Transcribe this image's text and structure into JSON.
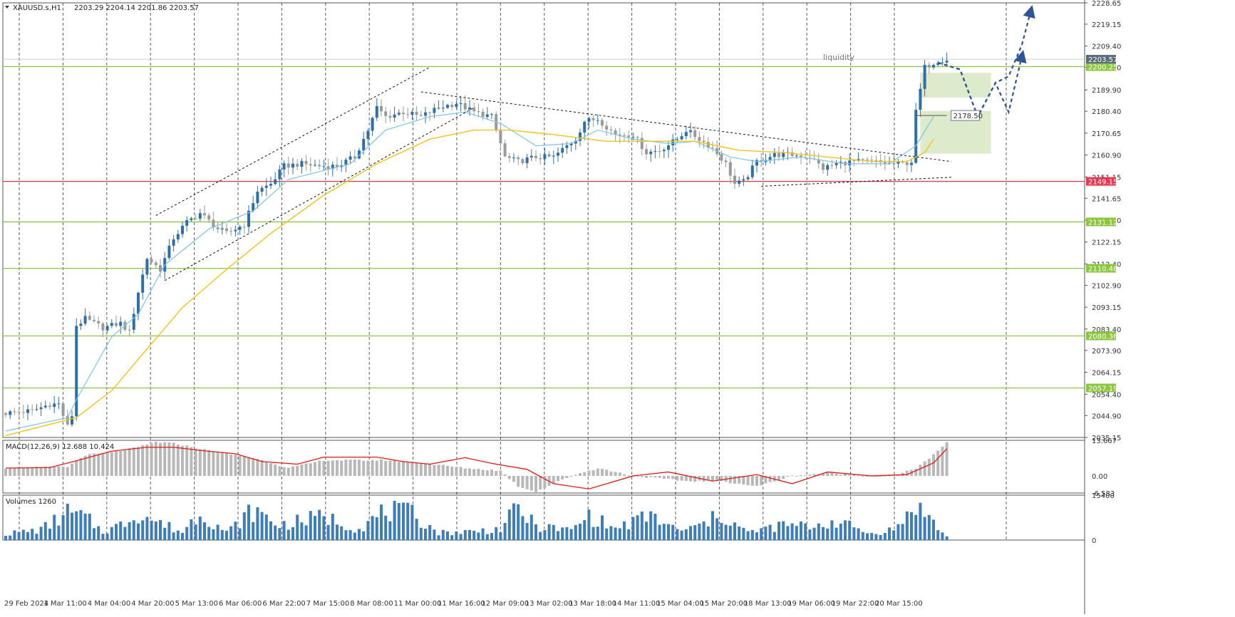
{
  "header": {
    "symbol_label": "XAUUSD.s,H1",
    "ohlc_label": "2203.29 2204.14 2201.86 2203.57"
  },
  "colors": {
    "bull": "#2f6fa8",
    "bear": "#9a9a9a",
    "ema_fast": "#7cc4e8",
    "ema_slow": "#f0c419",
    "level_green": "#8cc63f",
    "support_red": "#e8384f",
    "macd_hist": "#b8b8b8",
    "macd_signal": "#e01818",
    "volume": "#3d7db8",
    "forecast": "#2d5597",
    "zone_fill": "#d7e8c3",
    "grid": "#333333"
  },
  "chart_data": [
    {
      "type": "candlestick",
      "title": "XAUUSD.s,H1",
      "ohlc_readout": "2203.29 2204.14 2201.86 2203.57",
      "ylim": [
        2035.15,
        2228.65
      ],
      "y_ticks": [
        "2228.65",
        "2219.15",
        "2209.40",
        "2199.90",
        "2189.90",
        "2180.40",
        "2170.65",
        "2160.90",
        "2151.15",
        "2141.65",
        "2131.90",
        "2122.15",
        "2112.40",
        "2102.90",
        "2093.15",
        "2083.40",
        "2073.90",
        "2064.15",
        "2054.40",
        "2044.90",
        "2035.15"
      ],
      "x_ticks": [
        "29 Feb 2024",
        "1 Mar 11:00",
        "4 Mar 04:00",
        "4 Mar 20:00",
        "5 Mar 13:00",
        "6 Mar 06:00",
        "6 Mar 22:00",
        "7 Mar 15:00",
        "8 Mar 08:00",
        "11 Mar 00:00",
        "11 Mar 16:00",
        "12 Mar 09:00",
        "13 Mar 02:00",
        "13 Mar 18:00",
        "14 Mar 11:00",
        "15 Mar 04:00",
        "15 Mar 20:00",
        "18 Mar 13:00",
        "19 Mar 06:00",
        "19 Mar 22:00",
        "20 Mar 15:00"
      ],
      "price_path": [
        [
          0,
          2046
        ],
        [
          6,
          2047
        ],
        [
          10,
          2050
        ],
        [
          12,
          2050
        ],
        [
          14,
          2040
        ],
        [
          15,
          2045
        ],
        [
          16,
          2085
        ],
        [
          18,
          2088
        ],
        [
          22,
          2084
        ],
        [
          26,
          2086
        ],
        [
          28,
          2082
        ],
        [
          30,
          2100
        ],
        [
          32,
          2115
        ],
        [
          35,
          2110
        ],
        [
          38,
          2124
        ],
        [
          41,
          2131
        ],
        [
          44,
          2135
        ],
        [
          48,
          2128
        ],
        [
          50,
          2126
        ],
        [
          54,
          2130
        ],
        [
          57,
          2145
        ],
        [
          60,
          2148
        ],
        [
          63,
          2156
        ],
        [
          67,
          2157
        ],
        [
          71,
          2156
        ],
        [
          75,
          2156
        ],
        [
          79,
          2160
        ],
        [
          82,
          2172
        ],
        [
          84,
          2182
        ],
        [
          86,
          2178
        ],
        [
          90,
          2180
        ],
        [
          94,
          2178
        ],
        [
          98,
          2182
        ],
        [
          102,
          2184
        ],
        [
          106,
          2180
        ],
        [
          110,
          2178
        ],
        [
          113,
          2160
        ],
        [
          116,
          2158
        ],
        [
          120,
          2160
        ],
        [
          124,
          2160
        ],
        [
          127,
          2165
        ],
        [
          129,
          2168
        ],
        [
          131,
          2176
        ],
        [
          134,
          2177
        ],
        [
          138,
          2170
        ],
        [
          142,
          2170
        ],
        [
          145,
          2162
        ],
        [
          148,
          2163
        ],
        [
          152,
          2168
        ],
        [
          154,
          2172
        ],
        [
          157,
          2168
        ],
        [
          160,
          2164
        ],
        [
          163,
          2157
        ],
        [
          165,
          2148
        ],
        [
          167,
          2149
        ],
        [
          170,
          2158
        ],
        [
          174,
          2161
        ],
        [
          178,
          2161
        ],
        [
          182,
          2160
        ],
        [
          185,
          2155
        ],
        [
          188,
          2157
        ],
        [
          192,
          2158
        ],
        [
          196,
          2158
        ],
        [
          200,
          2157
        ],
        [
          203,
          2157
        ],
        [
          205,
          2158
        ],
        [
          206,
          2180
        ],
        [
          208,
          2200
        ],
        [
          211,
          2203
        ],
        [
          213,
          2203.57
        ]
      ],
      "ema_fast_path": [
        [
          0,
          2038
        ],
        [
          14,
          2044
        ],
        [
          16,
          2052
        ],
        [
          24,
          2080
        ],
        [
          30,
          2090
        ],
        [
          36,
          2112
        ],
        [
          46,
          2128
        ],
        [
          56,
          2136
        ],
        [
          64,
          2150
        ],
        [
          78,
          2157
        ],
        [
          86,
          2172
        ],
        [
          96,
          2178
        ],
        [
          104,
          2180
        ],
        [
          112,
          2175
        ],
        [
          120,
          2165
        ],
        [
          128,
          2166
        ],
        [
          134,
          2172
        ],
        [
          142,
          2168
        ],
        [
          150,
          2166
        ],
        [
          156,
          2167
        ],
        [
          164,
          2160
        ],
        [
          170,
          2158
        ],
        [
          180,
          2160
        ],
        [
          190,
          2157
        ],
        [
          200,
          2157
        ],
        [
          206,
          2165
        ],
        [
          210,
          2178
        ]
      ],
      "ema_slow_path": [
        [
          0,
          2036
        ],
        [
          16,
          2044
        ],
        [
          24,
          2056
        ],
        [
          30,
          2070
        ],
        [
          40,
          2093
        ],
        [
          50,
          2110
        ],
        [
          60,
          2126
        ],
        [
          72,
          2143
        ],
        [
          84,
          2157
        ],
        [
          96,
          2168
        ],
        [
          106,
          2172
        ],
        [
          114,
          2172
        ],
        [
          124,
          2170
        ],
        [
          136,
          2167
        ],
        [
          146,
          2167
        ],
        [
          156,
          2167
        ],
        [
          166,
          2163
        ],
        [
          176,
          2162
        ],
        [
          186,
          2160
        ],
        [
          196,
          2158
        ],
        [
          204,
          2158
        ],
        [
          208,
          2162
        ],
        [
          210,
          2168
        ]
      ],
      "horizontal_levels": [
        {
          "price": 2200.25,
          "label": "2200.25",
          "kind": "resistance"
        },
        {
          "price": 2149.15,
          "label": "2149.15",
          "kind": "support"
        },
        {
          "price": 2131.12,
          "label": "2131.12",
          "kind": "level"
        },
        {
          "price": 2110.46,
          "label": "2110.46",
          "kind": "level"
        },
        {
          "price": 2080.36,
          "label": "2080.36",
          "kind": "level"
        },
        {
          "price": 2057.19,
          "label": "2057.19",
          "kind": "level"
        }
      ],
      "current_price": {
        "price": 2203.57,
        "label": "2203.57"
      },
      "annotations": {
        "liquidity_label": "liquidity",
        "target_label": "2178.50",
        "target_price": 2178.5,
        "zones": [
          {
            "x0": 207,
            "x1": 223,
            "y0": 2186.5,
            "y1": 2197.5
          },
          {
            "x0": 207,
            "x1": 223,
            "y0": 2161.5,
            "y1": 2180.5
          }
        ],
        "channel_lines": [
          {
            "x0": 34,
            "y0": 2134,
            "x1": 96,
            "y1": 2200
          },
          {
            "x0": 36,
            "y0": 2105,
            "x1": 106,
            "y1": 2182
          }
        ],
        "triangle_lines": [
          {
            "x0": 94,
            "y0": 2189,
            "x1": 214,
            "y1": 2158
          },
          {
            "x0": 171,
            "y0": 2147,
            "x1": 214,
            "y1": 2151
          }
        ],
        "forecast_paths": [
          [
            [
              211,
              2202
            ],
            [
              216,
              2199
            ],
            [
              220,
              2178
            ],
            [
              224,
              2193
            ],
            [
              227,
              2196
            ],
            [
              230,
              2210
            ],
            [
              232,
              2225
            ]
          ],
          [
            [
              211,
              2202
            ],
            [
              216,
              2199
            ],
            [
              220,
              2178
            ],
            [
              224,
              2193
            ],
            [
              227,
              2180
            ],
            [
              230,
              2205
            ]
          ]
        ]
      }
    },
    {
      "type": "macd",
      "title": "MACD(12,26,9) 12.688 10.424",
      "ylim": [
        -6.583,
        13.667
      ],
      "y_ticks": [
        "13.667",
        "0.00",
        "-6.583"
      ],
      "hist_path": [
        [
          0,
          3
        ],
        [
          14,
          3.5
        ],
        [
          18,
          8
        ],
        [
          24,
          9
        ],
        [
          30,
          11
        ],
        [
          34,
          13
        ],
        [
          38,
          12.5
        ],
        [
          48,
          9
        ],
        [
          56,
          7
        ],
        [
          64,
          3
        ],
        [
          72,
          6
        ],
        [
          86,
          6
        ],
        [
          94,
          5
        ],
        [
          104,
          3
        ],
        [
          112,
          2
        ],
        [
          116,
          -4
        ],
        [
          120,
          -6
        ],
        [
          128,
          0
        ],
        [
          134,
          3
        ],
        [
          142,
          0
        ],
        [
          154,
          -2
        ],
        [
          162,
          -2
        ],
        [
          170,
          -4
        ],
        [
          178,
          0
        ],
        [
          186,
          1
        ],
        [
          196,
          0
        ],
        [
          202,
          0.5
        ],
        [
          206,
          3
        ],
        [
          210,
          8
        ],
        [
          213,
          12.7
        ]
      ],
      "signal_path": [
        [
          0,
          3
        ],
        [
          10,
          3.2
        ],
        [
          16,
          5.8
        ],
        [
          24,
          9.5
        ],
        [
          32,
          11
        ],
        [
          38,
          11
        ],
        [
          44,
          9.8
        ],
        [
          52,
          8.5
        ],
        [
          58,
          5.5
        ],
        [
          66,
          4.5
        ],
        [
          72,
          7.2
        ],
        [
          84,
          7.2
        ],
        [
          90,
          5.5
        ],
        [
          96,
          4.5
        ],
        [
          104,
          7
        ],
        [
          110,
          4.8
        ],
        [
          118,
          2.5
        ],
        [
          124,
          -3
        ],
        [
          132,
          -5
        ],
        [
          142,
          0
        ],
        [
          150,
          1.5
        ],
        [
          160,
          -2
        ],
        [
          170,
          0.5
        ],
        [
          178,
          -3
        ],
        [
          186,
          1.5
        ],
        [
          196,
          0
        ],
        [
          204,
          0.5
        ],
        [
          210,
          5
        ],
        [
          213,
          10.4
        ]
      ]
    },
    {
      "type": "bar",
      "title": "Volumes 1260",
      "ylim": [
        0,
        15400
      ],
      "y_ticks": [
        "15400",
        "0"
      ],
      "volume_path": [
        [
          0,
          2500
        ],
        [
          8,
          4200
        ],
        [
          14,
          11000
        ],
        [
          18,
          9000
        ],
        [
          22,
          3500
        ],
        [
          26,
          6000
        ],
        [
          30,
          11000
        ],
        [
          34,
          7500
        ],
        [
          40,
          3200
        ],
        [
          44,
          11500
        ],
        [
          50,
          3000
        ],
        [
          56,
          12000
        ],
        [
          62,
          6000
        ],
        [
          72,
          9500
        ],
        [
          80,
          4500
        ],
        [
          86,
          11800
        ],
        [
          92,
          10500
        ],
        [
          98,
          3000
        ],
        [
          106,
          3500
        ],
        [
          112,
          4500
        ],
        [
          116,
          13000
        ],
        [
          120,
          5500
        ],
        [
          128,
          4000
        ],
        [
          132,
          9800
        ],
        [
          138,
          4500
        ],
        [
          146,
          10000
        ],
        [
          152,
          3800
        ],
        [
          156,
          5000
        ],
        [
          162,
          10000
        ],
        [
          168,
          3000
        ],
        [
          176,
          6000
        ],
        [
          182,
          5500
        ],
        [
          188,
          7600
        ],
        [
          196,
          2500
        ],
        [
          202,
          5000
        ],
        [
          206,
          14900
        ],
        [
          209,
          8700
        ],
        [
          213,
          1260
        ]
      ]
    }
  ]
}
